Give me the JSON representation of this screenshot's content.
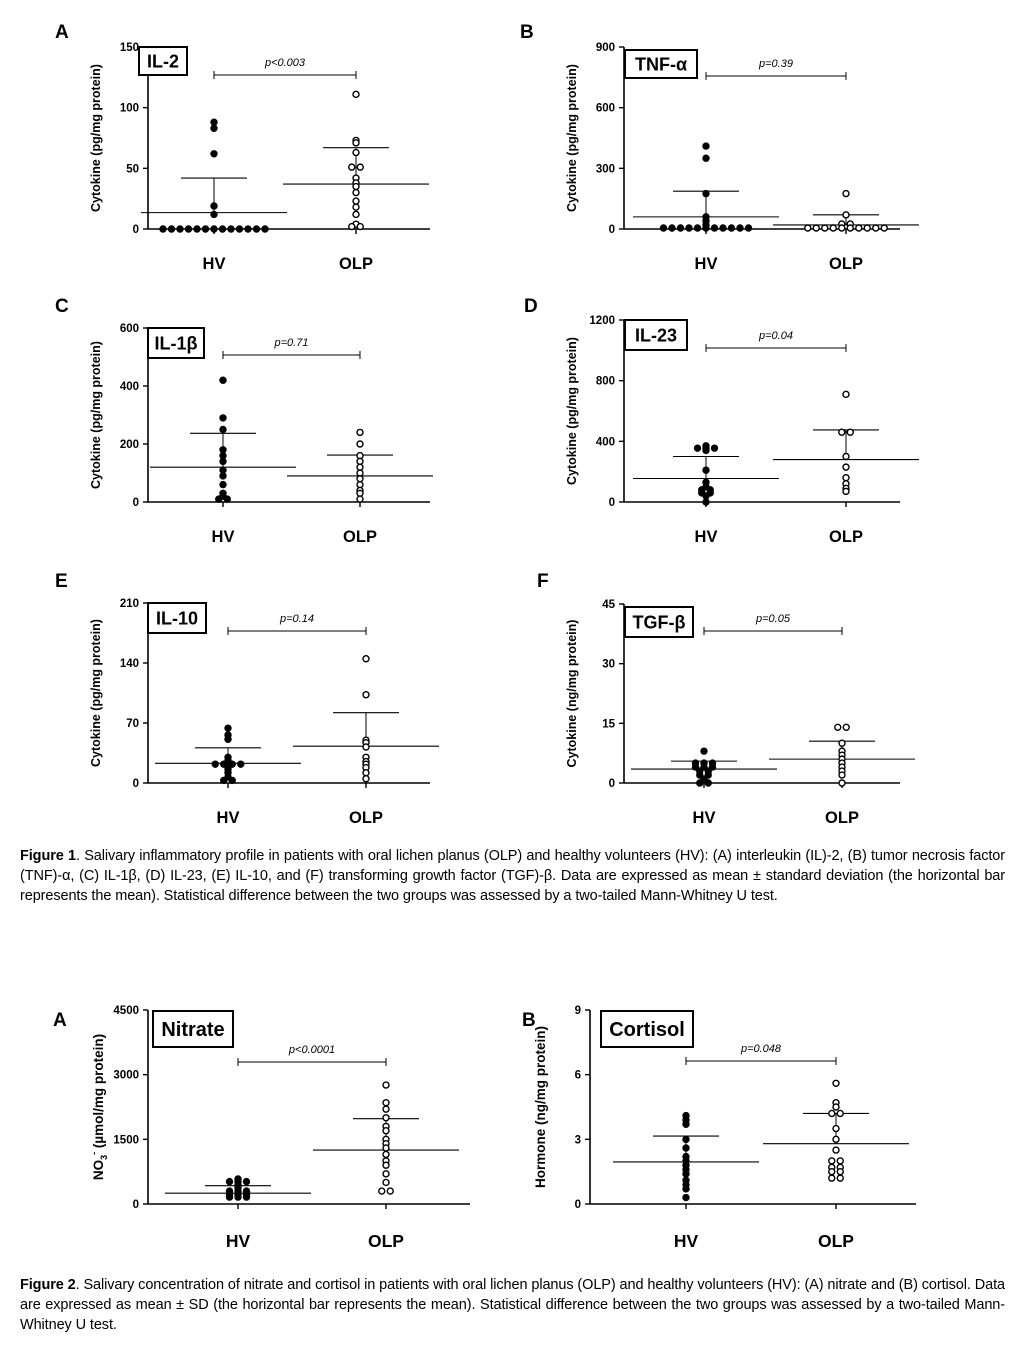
{
  "figure1": {
    "caption_label": "Figure 1",
    "caption_text": ". Salivary inflammatory profile in patients with oral lichen planus (OLP) and healthy volunteers (HV): (A) interleukin (IL)-2, (B) tumor necrosis factor (TNF)-α, (C) IL-1β, (D) IL-23, (E) IL-10, and (F) transforming growth factor (TGF)-β. Data are expressed as mean ± standard deviation (the horizontal bar represents the mean). Statistical difference between the two groups was assessed by a two-tailed Mann-Whitney U test."
  },
  "figure2": {
    "caption_label": "Figure 2",
    "caption_text": ". Salivary concentration of nitrate and cortisol in patients with oral lichen planus (OLP) and healthy volunteers (HV): (A) nitrate and (B) cortisol. Data are expressed as mean ± SD (the horizontal bar represents the mean). Statistical difference between the two groups was assessed by a two-tailed Mann-Whitney U test."
  },
  "chart_data": [
    {
      "id": "IL-2",
      "type": "scatter",
      "panel": "A",
      "title": "IL-2",
      "ylabel": "Cytokine (pg/mg protein)",
      "ylim": [
        0,
        150
      ],
      "yticks": [
        0,
        50,
        100,
        150
      ],
      "categories": [
        "HV",
        "OLP"
      ],
      "pvalue": "p<0.003",
      "series": [
        {
          "values": [
            88,
            83,
            62,
            19,
            12,
            0,
            0,
            0,
            0,
            0,
            0,
            0,
            0,
            0,
            0,
            0,
            0,
            0
          ],
          "mean": 13.5,
          "sd": 28.5
        },
        {
          "values": [
            111,
            73,
            71,
            63,
            51,
            50,
            42,
            38,
            35,
            30,
            23,
            18,
            12,
            4,
            2,
            1
          ],
          "mean": 37,
          "sd": 30
        }
      ]
    },
    {
      "id": "TNF",
      "type": "scatter",
      "panel": "B",
      "title": "TNF-α",
      "ylabel": "Cytokine (pg/mg protein)",
      "ylim": [
        0,
        900
      ],
      "yticks": [
        0,
        300,
        600,
        900
      ],
      "categories": [
        "HV",
        "OLP"
      ],
      "pvalue": "p=0.39",
      "series": [
        {
          "values": [
            410,
            350,
            175,
            60,
            40,
            20,
            5,
            5,
            5,
            5,
            5,
            5,
            5,
            5,
            5,
            5,
            5
          ],
          "mean": 60,
          "sd": 127
        },
        {
          "values": [
            175,
            70,
            25,
            20,
            5,
            5,
            5,
            5,
            5,
            5,
            5,
            5,
            5,
            5
          ],
          "mean": 20,
          "sd": 50
        }
      ]
    },
    {
      "id": "IL-1b",
      "type": "scatter",
      "panel": "C",
      "title": "IL-1β",
      "ylabel": "Cytokine (pg/mg protein)",
      "ylim": [
        0,
        600
      ],
      "yticks": [
        0,
        200,
        400,
        600
      ],
      "categories": [
        "HV",
        "OLP"
      ],
      "pvalue": "p=0.71",
      "series": [
        {
          "values": [
            420,
            290,
            250,
            180,
            160,
            140,
            110,
            90,
            60,
            30,
            20,
            10,
            5
          ],
          "mean": 120,
          "sd": 117
        },
        {
          "values": [
            240,
            200,
            160,
            140,
            120,
            100,
            80,
            60,
            40,
            30,
            10
          ],
          "mean": 90,
          "sd": 72
        }
      ]
    },
    {
      "id": "IL-23",
      "type": "scatter",
      "panel": "D",
      "title": "IL-23",
      "ylabel": "Cytokine (pg/mg protein)",
      "ylim": [
        0,
        1200
      ],
      "yticks": [
        0,
        400,
        800,
        1200
      ],
      "categories": [
        "HV",
        "OLP"
      ],
      "pvalue": "p=0.04",
      "series": [
        {
          "values": [
            370,
            355,
            350,
            345,
            340,
            210,
            130,
            100,
            80,
            70,
            60,
            50,
            40,
            0
          ],
          "mean": 155,
          "sd": 145
        },
        {
          "values": [
            710,
            460,
            450,
            300,
            230,
            160,
            120,
            90,
            70
          ],
          "mean": 280,
          "sd": 195
        }
      ]
    },
    {
      "id": "IL-10",
      "type": "scatter",
      "panel": "E",
      "title": "IL-10",
      "ylabel": "Cytokine (pg/mg protein)",
      "ylim": [
        0,
        210
      ],
      "yticks": [
        0,
        70,
        140,
        210
      ],
      "categories": [
        "HV",
        "OLP"
      ],
      "pvalue": "p=0.14",
      "series": [
        {
          "values": [
            64,
            56,
            51,
            30,
            26,
            22,
            22,
            20,
            20,
            19,
            16,
            12,
            7,
            3,
            2
          ],
          "mean": 23,
          "sd": 18
        },
        {
          "values": [
            145,
            103,
            50,
            47,
            42,
            30,
            25,
            22,
            18,
            12,
            5
          ],
          "mean": 43,
          "sd": 39
        }
      ]
    },
    {
      "id": "TGF-b",
      "type": "scatter",
      "panel": "F",
      "title": "TGF-β",
      "ylabel": "Cytokine (ng/mg protein)",
      "ylim": [
        0,
        45
      ],
      "yticks": [
        0,
        15,
        30,
        45
      ],
      "categories": [
        "HV",
        "OLP"
      ],
      "pvalue": "p=0.05",
      "series": [
        {
          "values": [
            8,
            5,
            5,
            4.5,
            4,
            4,
            3.5,
            3,
            2.5,
            2,
            1.5,
            1,
            0,
            0
          ],
          "mean": 3.5,
          "sd": 2
        },
        {
          "values": [
            14,
            14,
            10,
            8,
            7,
            6,
            5,
            4,
            3,
            2,
            0
          ],
          "mean": 6,
          "sd": 4.5
        }
      ]
    },
    {
      "id": "Nitrate",
      "type": "scatter",
      "panel": "A",
      "title": "Nitrate",
      "ylabel_prefix": "NO",
      "ylabel_sub": "3",
      "ylabel_sup": "-",
      "ylabel_suffix": " (µmol/mg protein)",
      "ylim": [
        0,
        4500
      ],
      "yticks": [
        0,
        1500,
        3000,
        4500
      ],
      "categories": [
        "HV",
        "OLP"
      ],
      "pvalue": "p<0.0001",
      "series": [
        {
          "values": [
            580,
            520,
            490,
            470,
            440,
            380,
            300,
            270,
            250,
            220,
            200,
            180,
            160,
            140,
            120
          ],
          "mean": 250,
          "sd": 175
        },
        {
          "values": [
            2760,
            2350,
            2200,
            2000,
            1800,
            1700,
            1500,
            1400,
            1300,
            1150,
            1000,
            900,
            700,
            500,
            300,
            250
          ],
          "mean": 1250,
          "sd": 730
        }
      ]
    },
    {
      "id": "Cortisol",
      "type": "scatter",
      "panel": "B",
      "title": "Cortisol",
      "ylabel": "Hormone (ng/mg protein)",
      "ylim": [
        0,
        9
      ],
      "yticks": [
        0,
        3,
        6,
        9
      ],
      "categories": [
        "HV",
        "OLP"
      ],
      "pvalue": "p=0.048",
      "series": [
        {
          "values": [
            4.1,
            3.9,
            3.7,
            3.0,
            2.6,
            2.2,
            2.0,
            1.8,
            1.6,
            1.4,
            1.1,
            0.9,
            0.7,
            0.3
          ],
          "mean": 1.95,
          "sd": 1.2
        },
        {
          "values": [
            5.6,
            4.7,
            4.5,
            4.2,
            4.2,
            3.5,
            3.0,
            2.5,
            2.0,
            1.9,
            1.7,
            1.6,
            1.5,
            1.4,
            1.2,
            1.1
          ],
          "mean": 2.8,
          "sd": 1.4
        }
      ]
    }
  ]
}
